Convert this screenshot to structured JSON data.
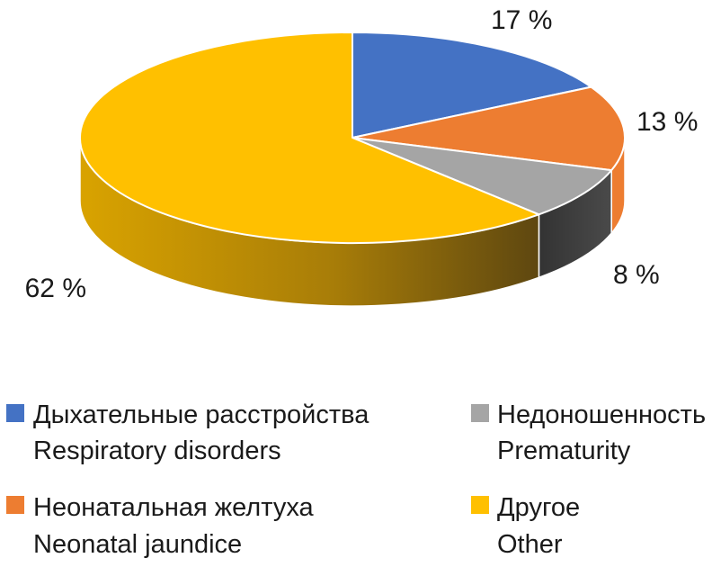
{
  "chart_data": {
    "type": "pie",
    "title": "",
    "values": [
      17,
      13,
      8,
      62
    ],
    "value_labels": [
      "17 %",
      "13 %",
      "8 %",
      "62 %"
    ],
    "series": [
      {
        "name_ru": "Дыхательные расстройства",
        "name_en": "Respiratory disorders",
        "value": 17,
        "color": "#4472C4"
      },
      {
        "name_ru": "Неонатальная желтуха",
        "name_en": "Neonatal jaundice",
        "value": 13,
        "color": "#ED7D31"
      },
      {
        "name_ru": "Недоношенность",
        "name_en": "Prematurity",
        "value": 8,
        "color": "#A5A5A5"
      },
      {
        "name_ru": "Другое",
        "name_en": "Other",
        "value": 62,
        "color": "#FFC000"
      }
    ],
    "legend_position": "bottom",
    "style": "3d"
  }
}
